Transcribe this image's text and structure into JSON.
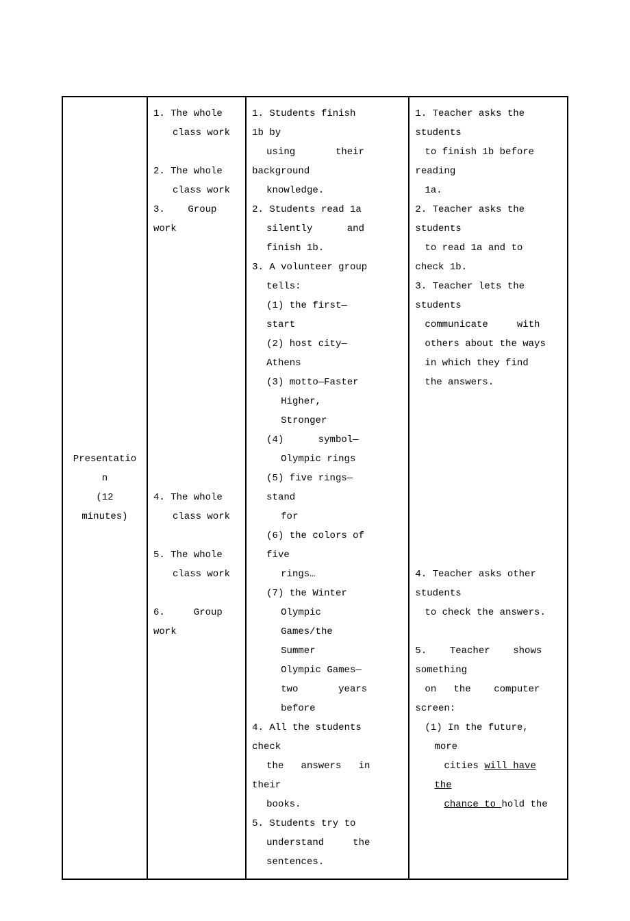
{
  "section": {
    "label_line1": "Presentatio",
    "label_line2": "n",
    "label_line3": "(12",
    "label_line4": "minutes)"
  },
  "col2": {
    "i1_l1": "1. The whole",
    "i1_l2": "class work",
    "i2_l1": "2. The whole",
    "i2_l2": "class work",
    "i3": "3.    Group",
    "i3b": "work",
    "i4_l1": "4. The whole",
    "i4_l2": "class work",
    "i5_l1": "5. The whole",
    "i5_l2": "class work",
    "i6_l1": "6.     Group",
    "i6_l2": "work"
  },
  "col3": {
    "s1_l1": "1.  Students  finish",
    "s1_l2": "1b by",
    "s1_l3": "using       their",
    "s1_l4": "background",
    "s1_l5": "knowledge.",
    "s2_l1": "2. Students read 1a",
    "s2_l2": "silently      and",
    "s2_l3": "finish 1b.",
    "s3_l1": "3.  A volunteer group",
    "s3_l2": "tells:",
    "s3_p1_l1": "(1)  the  first—",
    "s3_p1_l2": "start",
    "s3_p2_l1": "(2)  host  city—",
    "s3_p2_l2": "Athens",
    "s3_p3": "(3) motto—Faster",
    "s3_p3b": "Higher,",
    "s3_p3c": "Stronger",
    "s3_p4_l1": "(4)      symbol—",
    "s3_p4_l2": "Olympic rings",
    "s3_p5_l1": "(5)  five  rings—",
    "s3_p5_l2": "stand",
    "s3_p5_l3": "for",
    "s3_p6_l1": "(6) the colors of",
    "s3_p6_l2": "five",
    "s3_p6_l3": "rings…",
    "s3_p7_l1": "(7)  the   Winter",
    "s3_p7_l2": "Olympic",
    "s3_p7_l3": "Games/the",
    "s3_p7_l4": "Summer",
    "s3_p7_l5": "Olympic Games—",
    "s3_p7_l6": "two       years",
    "s3_p7_l7": "before",
    "s4_l1": "4.  All  the  students",
    "s4_l2": "check",
    "s4_l3": "the   answers   in",
    "s4_l4": "their",
    "s4_l5": "books.",
    "s5_l1": "5. Students try to",
    "s5_l2": "understand     the",
    "s5_l3": "sentences."
  },
  "col4": {
    "t1_l1": "1.  Teacher  asks  the",
    "t1_l2": "students",
    "t1_l3": "to  finish  1b  before",
    "t1_l4": "reading",
    "t1_l5": "1a.",
    "t2_l1": "2.  Teacher  asks  the",
    "t2_l2": "students",
    "t2_l3": "to  read  1a  and  to",
    "t2_l4": "check 1b.",
    "t3_l1": "3.  Teacher  lets  the",
    "t3_l2": "students",
    "t3_l3": "communicate     with",
    "t3_l4": "others about the ways",
    "t3_l5": "in  which  they  find",
    "t3_l6": "the answers.",
    "t4_l1": "4.  Teacher  asks  other",
    "t4_l2": "students",
    "t4_l3": "to check the answers.",
    "t5_l1": "5.    Teacher    shows",
    "t5_l2": "something",
    "t5_l3": "on   the    computer",
    "t5_l4": "screen:",
    "t5_p1_l1": "(1)  In  the  future,",
    "t5_p1_l2": "more",
    "t5_p1_l3a": "cities ",
    "t5_p1_l3b": "will  have",
    "t5_p1_l4": "the ",
    "t5_p1_l5a": "chance to ",
    "t5_p1_l5b": "hold the"
  }
}
